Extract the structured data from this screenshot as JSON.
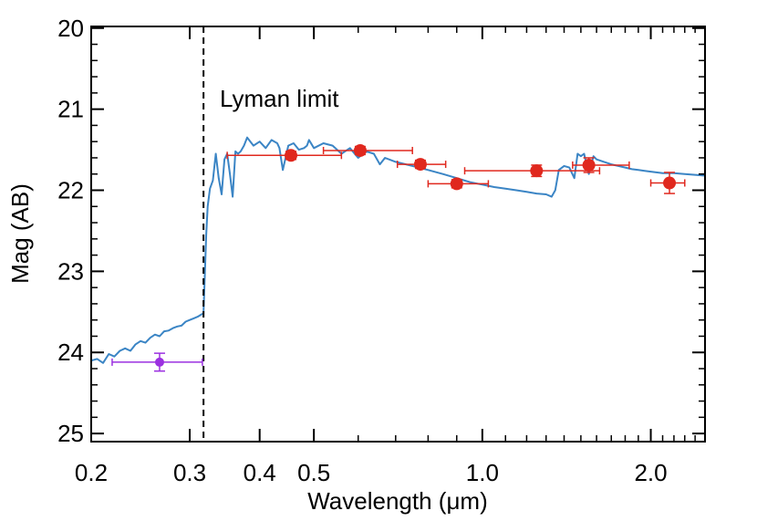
{
  "chart_data": {
    "type": "scatter",
    "xlabel": "Wavelength (μm)",
    "ylabel": "Mag (AB)",
    "x_scale": "log",
    "xlim": [
      0.2,
      2.5
    ],
    "ylim": [
      25.1,
      19.98
    ],
    "y_inverted": true,
    "x_ticks": [
      0.2,
      0.3,
      0.4,
      0.5,
      1.0,
      2.0
    ],
    "x_tick_labels": [
      "0.2",
      "0.3",
      "0.4",
      "0.5",
      "1.0",
      "2.0"
    ],
    "y_ticks": [
      20,
      21,
      22,
      23,
      24,
      25
    ],
    "y_tick_labels": [
      "20",
      "21",
      "22",
      "23",
      "24",
      "25"
    ],
    "grid": false,
    "colors": {
      "model": "#3b85c5",
      "photometry": "#e0281e",
      "uv_point": "#9b30e0",
      "lyman_line": "#000000"
    },
    "annotations": [
      {
        "text": "Lyman limit",
        "x": 0.3175
      }
    ],
    "series": [
      {
        "type": "line",
        "color": "#3b85c5",
        "x": [
          0.2,
          0.205,
          0.21,
          0.215,
          0.22,
          0.225,
          0.23,
          0.235,
          0.24,
          0.245,
          0.25,
          0.255,
          0.26,
          0.265,
          0.27,
          0.275,
          0.28,
          0.285,
          0.29,
          0.295,
          0.3,
          0.305,
          0.31,
          0.315,
          0.3175,
          0.319,
          0.321,
          0.323,
          0.326,
          0.33,
          0.334,
          0.338,
          0.342,
          0.346,
          0.35,
          0.354,
          0.358,
          0.362,
          0.366,
          0.37,
          0.375,
          0.38,
          0.39,
          0.4,
          0.41,
          0.42,
          0.43,
          0.434,
          0.44,
          0.45,
          0.46,
          0.47,
          0.48,
          0.486,
          0.49,
          0.5,
          0.52,
          0.54,
          0.56,
          0.58,
          0.6,
          0.62,
          0.64,
          0.656,
          0.67,
          0.7,
          0.75,
          0.8,
          0.85,
          0.9,
          0.95,
          1.0,
          1.05,
          1.1,
          1.15,
          1.2,
          1.25,
          1.3,
          1.33,
          1.35,
          1.37,
          1.4,
          1.43,
          1.46,
          1.48,
          1.5,
          1.52,
          1.55,
          1.58,
          1.6,
          1.65,
          1.7,
          1.75,
          1.8,
          1.85,
          1.9,
          1.95,
          2.0,
          2.1,
          2.2,
          2.3,
          2.4,
          2.5
        ],
        "y": [
          24.1,
          24.08,
          24.13,
          24.02,
          24.05,
          23.98,
          23.95,
          23.98,
          23.9,
          23.86,
          23.88,
          23.82,
          23.78,
          23.8,
          23.74,
          23.73,
          23.7,
          23.68,
          23.67,
          23.62,
          23.6,
          23.58,
          23.56,
          23.53,
          23.52,
          23.1,
          22.55,
          22.2,
          21.98,
          21.88,
          21.55,
          21.85,
          22.05,
          21.62,
          21.55,
          21.8,
          22.08,
          21.52,
          21.55,
          21.52,
          21.45,
          21.35,
          21.45,
          21.4,
          21.48,
          21.38,
          21.42,
          21.48,
          21.75,
          21.45,
          21.42,
          21.5,
          21.48,
          21.45,
          21.38,
          21.48,
          21.42,
          21.45,
          21.55,
          21.48,
          21.6,
          21.52,
          21.55,
          21.68,
          21.6,
          21.65,
          21.7,
          21.75,
          21.8,
          21.85,
          21.9,
          21.93,
          21.96,
          21.98,
          22.0,
          22.02,
          22.04,
          22.05,
          22.08,
          22.0,
          21.75,
          21.7,
          21.72,
          21.85,
          21.55,
          21.58,
          21.55,
          21.8,
          21.58,
          21.62,
          21.65,
          21.68,
          21.7,
          21.72,
          21.74,
          21.75,
          21.76,
          21.77,
          21.79,
          21.79,
          21.8,
          21.81,
          21.82
        ]
      },
      {
        "type": "scatter_errorbar",
        "color": "#e0281e",
        "points": [
          {
            "x": 0.455,
            "y": 21.57,
            "xerr_low": 0.105,
            "xerr_high": 0.105,
            "yerr": 0.05
          },
          {
            "x": 0.605,
            "y": 21.51,
            "xerr_low": 0.085,
            "xerr_high": 0.145,
            "yerr": 0.05
          },
          {
            "x": 0.775,
            "y": 21.68,
            "xerr_low": 0.07,
            "xerr_high": 0.085,
            "yerr": 0.05
          },
          {
            "x": 0.9,
            "y": 21.92,
            "xerr_low": 0.1,
            "xerr_high": 0.125,
            "yerr": 0.05
          },
          {
            "x": 1.25,
            "y": 21.76,
            "xerr_low": 0.32,
            "xerr_high": 0.37,
            "yerr": 0.07
          },
          {
            "x": 1.55,
            "y": 21.69,
            "xerr_low": 0.1,
            "xerr_high": 0.28,
            "yerr": 0.09
          },
          {
            "x": 2.16,
            "y": 21.91,
            "xerr_low": 0.16,
            "xerr_high": 0.14,
            "yerr": 0.13
          }
        ]
      },
      {
        "type": "scatter_errorbar",
        "color": "#9b30e0",
        "points": [
          {
            "x": 0.265,
            "y": 24.12,
            "xerr_low": 0.047,
            "xerr_high": 0.051,
            "yerr": 0.11
          }
        ]
      }
    ]
  }
}
